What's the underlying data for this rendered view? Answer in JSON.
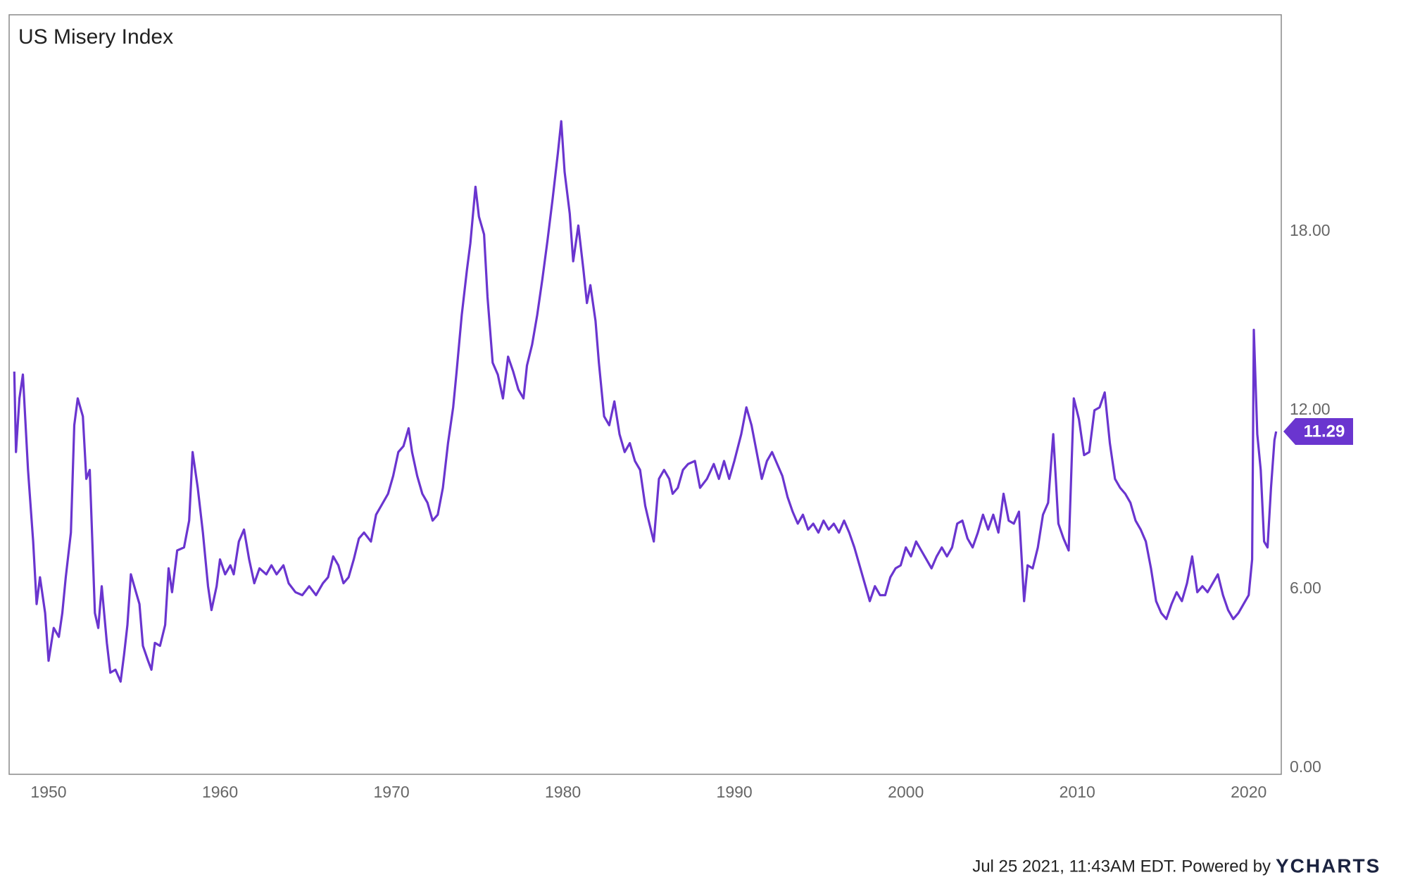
{
  "chart_data": {
    "type": "line",
    "title": "US Misery Index",
    "color": "#6a35cf",
    "grid": false,
    "x": [
      1948.0,
      1948.1,
      1948.3,
      1948.5,
      1948.8,
      1949.1,
      1949.3,
      1949.5,
      1949.8,
      1950.0,
      1950.3,
      1950.6,
      1950.8,
      1951.0,
      1951.3,
      1951.5,
      1951.7,
      1952.0,
      1952.2,
      1952.4,
      1952.7,
      1952.9,
      1953.1,
      1953.4,
      1953.6,
      1953.9,
      1954.2,
      1954.4,
      1954.6,
      1954.8,
      1955.1,
      1955.3,
      1955.5,
      1955.8,
      1956.0,
      1956.2,
      1956.5,
      1956.8,
      1957.0,
      1957.2,
      1957.5,
      1957.9,
      1958.2,
      1958.4,
      1958.7,
      1959.0,
      1959.3,
      1959.5,
      1959.8,
      1960.0,
      1960.3,
      1960.6,
      1960.8,
      1961.1,
      1961.4,
      1961.7,
      1962.0,
      1962.3,
      1962.7,
      1963.0,
      1963.3,
      1963.7,
      1964.0,
      1964.4,
      1964.8,
      1965.2,
      1965.6,
      1966.0,
      1966.3,
      1966.6,
      1966.9,
      1967.2,
      1967.5,
      1967.8,
      1968.1,
      1968.4,
      1968.8,
      1969.1,
      1969.4,
      1969.8,
      1970.1,
      1970.4,
      1970.7,
      1971.0,
      1971.2,
      1971.5,
      1971.8,
      1972.1,
      1972.4,
      1972.7,
      1973.0,
      1973.3,
      1973.6,
      1973.8,
      1974.1,
      1974.4,
      1974.6,
      1974.9,
      1975.1,
      1975.4,
      1975.6,
      1975.9,
      1976.2,
      1976.5,
      1976.8,
      1977.1,
      1977.4,
      1977.7,
      1977.9,
      1978.2,
      1978.5,
      1978.8,
      1979.1,
      1979.4,
      1979.7,
      1979.9,
      1980.1,
      1980.4,
      1980.6,
      1980.9,
      1981.2,
      1981.4,
      1981.6,
      1981.9,
      1982.1,
      1982.4,
      1982.7,
      1983.0,
      1983.3,
      1983.6,
      1983.9,
      1984.2,
      1984.5,
      1984.8,
      1985.0,
      1985.3,
      1985.6,
      1985.9,
      1986.2,
      1986.4,
      1986.7,
      1987.0,
      1987.3,
      1987.7,
      1988.0,
      1988.4,
      1988.8,
      1989.1,
      1989.4,
      1989.7,
      1990.0,
      1990.4,
      1990.7,
      1991.0,
      1991.3,
      1991.6,
      1991.9,
      1992.2,
      1992.5,
      1992.8,
      1993.1,
      1993.4,
      1993.7,
      1994.0,
      1994.3,
      1994.6,
      1994.9,
      1995.2,
      1995.5,
      1995.8,
      1996.1,
      1996.4,
      1996.7,
      1997.0,
      1997.3,
      1997.6,
      1997.9,
      1998.2,
      1998.5,
      1998.8,
      1999.1,
      1999.4,
      1999.7,
      2000.0,
      2000.3,
      2000.6,
      2000.9,
      2001.2,
      2001.5,
      2001.8,
      2002.1,
      2002.4,
      2002.7,
      2003.0,
      2003.3,
      2003.6,
      2003.9,
      2004.2,
      2004.5,
      2004.8,
      2005.1,
      2005.4,
      2005.7,
      2006.0,
      2006.3,
      2006.6,
      2006.9,
      2007.1,
      2007.4,
      2007.7,
      2008.0,
      2008.3,
      2008.6,
      2008.9,
      2009.2,
      2009.5,
      2009.8,
      2010.1,
      2010.4,
      2010.7,
      2011.0,
      2011.3,
      2011.6,
      2011.9,
      2012.2,
      2012.5,
      2012.8,
      2013.1,
      2013.4,
      2013.7,
      2014.0,
      2014.3,
      2014.6,
      2014.9,
      2015.2,
      2015.5,
      2015.8,
      2016.1,
      2016.4,
      2016.7,
      2017.0,
      2017.3,
      2017.6,
      2017.9,
      2018.2,
      2018.5,
      2018.8,
      2019.1,
      2019.4,
      2019.7,
      2020.0,
      2020.2,
      2020.3,
      2020.5,
      2020.7,
      2020.9,
      2021.1,
      2021.3,
      2021.5,
      2021.6
    ],
    "values": [
      13.3,
      10.6,
      12.4,
      13.2,
      10.0,
      7.6,
      5.5,
      6.4,
      5.2,
      3.6,
      4.7,
      4.4,
      5.2,
      6.4,
      7.9,
      11.5,
      12.4,
      11.8,
      9.7,
      10.0,
      5.2,
      4.7,
      6.1,
      4.2,
      3.2,
      3.3,
      2.9,
      3.8,
      4.8,
      6.5,
      5.9,
      5.5,
      4.1,
      3.6,
      3.3,
      4.2,
      4.1,
      4.8,
      6.7,
      5.9,
      7.3,
      7.4,
      8.3,
      10.6,
      9.4,
      7.9,
      6.1,
      5.3,
      6.1,
      7.0,
      6.5,
      6.8,
      6.5,
      7.6,
      8.0,
      7.0,
      6.2,
      6.7,
      6.5,
      6.8,
      6.5,
      6.8,
      6.2,
      5.9,
      5.8,
      6.1,
      5.8,
      6.2,
      6.4,
      7.1,
      6.8,
      6.2,
      6.4,
      7.0,
      7.7,
      7.9,
      7.6,
      8.5,
      8.8,
      9.2,
      9.8,
      10.6,
      10.8,
      11.4,
      10.6,
      9.8,
      9.2,
      8.9,
      8.3,
      8.5,
      9.4,
      10.9,
      12.1,
      13.3,
      15.2,
      16.7,
      17.6,
      19.5,
      18.5,
      17.9,
      15.8,
      13.6,
      13.2,
      12.4,
      13.8,
      13.3,
      12.7,
      12.4,
      13.5,
      14.2,
      15.2,
      16.4,
      17.7,
      19.1,
      20.6,
      21.7,
      20.0,
      18.6,
      17.0,
      18.2,
      16.7,
      15.6,
      16.2,
      15.0,
      13.6,
      11.8,
      11.5,
      12.3,
      11.2,
      10.6,
      10.9,
      10.3,
      10.0,
      8.8,
      8.3,
      7.6,
      9.7,
      10.0,
      9.7,
      9.2,
      9.4,
      10.0,
      10.2,
      10.3,
      9.4,
      9.7,
      10.2,
      9.7,
      10.3,
      9.7,
      10.3,
      11.2,
      12.1,
      11.5,
      10.6,
      9.7,
      10.3,
      10.6,
      10.2,
      9.8,
      9.1,
      8.6,
      8.2,
      8.5,
      8.0,
      8.2,
      7.9,
      8.3,
      8.0,
      8.2,
      7.9,
      8.3,
      7.9,
      7.4,
      6.8,
      6.2,
      5.6,
      6.1,
      5.8,
      5.8,
      6.4,
      6.7,
      6.8,
      7.4,
      7.1,
      7.6,
      7.3,
      7.0,
      6.7,
      7.1,
      7.4,
      7.1,
      7.4,
      8.2,
      8.3,
      7.7,
      7.4,
      7.9,
      8.5,
      8.0,
      8.5,
      7.9,
      9.2,
      8.3,
      8.2,
      8.6,
      5.6,
      6.8,
      6.7,
      7.4,
      8.5,
      8.9,
      11.2,
      8.2,
      7.7,
      7.3,
      12.4,
      11.7,
      10.5,
      10.6,
      12.0,
      12.1,
      12.6,
      10.9,
      9.7,
      9.4,
      9.2,
      8.9,
      8.3,
      8.0,
      7.6,
      6.7,
      5.6,
      5.2,
      5.0,
      5.5,
      5.9,
      5.6,
      6.2,
      7.1,
      5.9,
      6.1,
      5.9,
      6.2,
      6.5,
      5.8,
      5.3,
      5.0,
      5.2,
      5.5,
      5.8,
      7.0,
      14.7,
      11.2,
      10.0,
      7.6,
      7.4,
      9.4,
      11.0,
      11.29
    ],
    "xlim": [
      1947.7,
      2021.9
    ],
    "xticks": [
      1950,
      1960,
      1970,
      1980,
      1990,
      2000,
      2010,
      2020
    ],
    "ylim": [
      -0.21,
      25.27
    ],
    "yticks": [
      {
        "value": 0,
        "label": "0.00"
      },
      {
        "value": 6,
        "label": "6.00"
      },
      {
        "value": 12,
        "label": "12.00"
      },
      {
        "value": 18,
        "label": "18.00"
      }
    ],
    "footer": "Jul 25 2021, 11:43AM EDT. Powered by",
    "logo": "YCHARTS"
  }
}
